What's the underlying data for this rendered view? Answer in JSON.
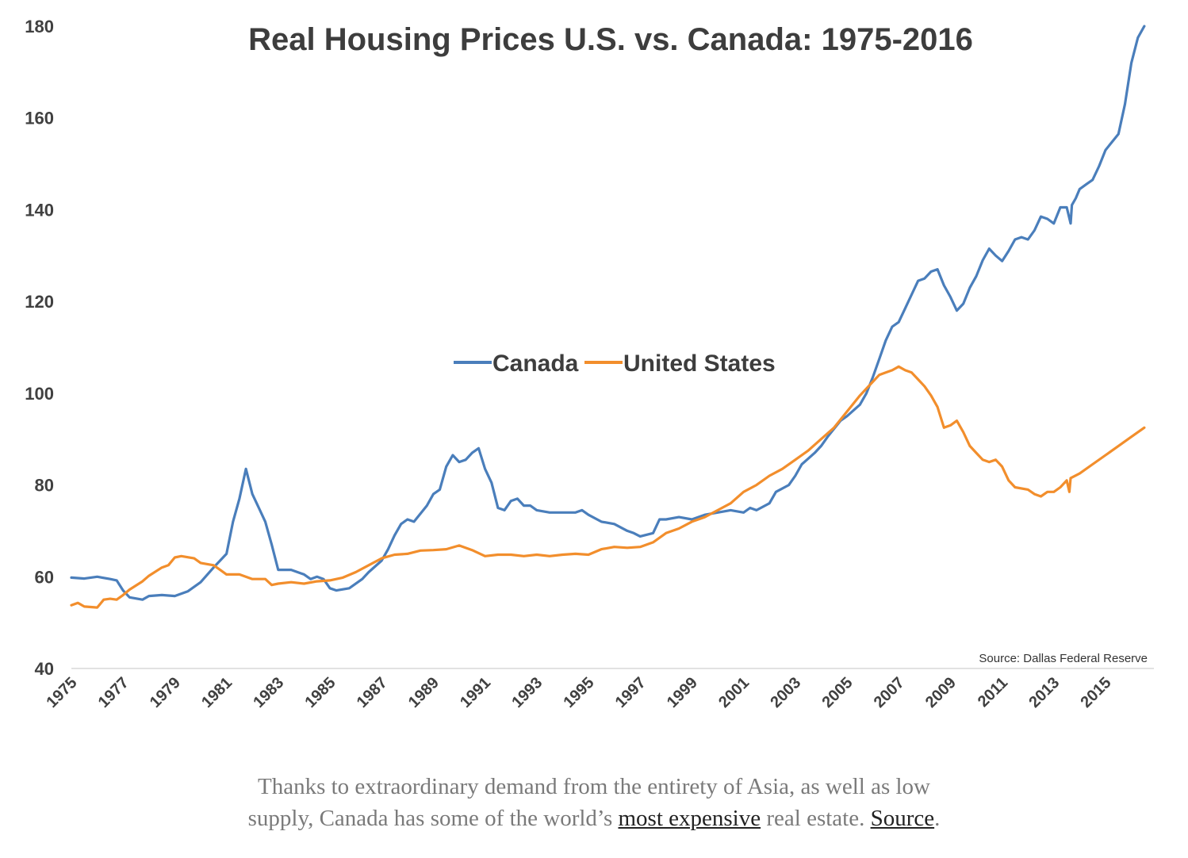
{
  "chart_data": {
    "type": "line",
    "title": "Real Housing Prices U.S. vs. Canada: 1975-2016",
    "xlabel": "",
    "ylabel": "",
    "ylim": [
      40,
      180
    ],
    "yticks": [
      40,
      60,
      80,
      100,
      120,
      140,
      160,
      180
    ],
    "xlim": [
      1975,
      2016.75
    ],
    "xticks": [
      "1975",
      "1977",
      "1979",
      "1981",
      "1983",
      "1985",
      "1987",
      "1989",
      "1991",
      "1993",
      "1995",
      "1997",
      "1999",
      "2001",
      "2003",
      "2005",
      "2007",
      "2009",
      "2011",
      "2013",
      "2015"
    ],
    "grid": false,
    "legend_placement": "center",
    "annotation": "Source: Dallas Federal Reserve",
    "series": [
      {
        "name": "Canada",
        "color": "#4a7ebb",
        "points": [
          [
            1975.0,
            59.8
          ],
          [
            1975.5,
            59.6
          ],
          [
            1976.0,
            60.0
          ],
          [
            1976.5,
            59.5
          ],
          [
            1976.75,
            59.2
          ],
          [
            1977.0,
            57.0
          ],
          [
            1977.25,
            55.5
          ],
          [
            1977.75,
            55.0
          ],
          [
            1978.0,
            55.8
          ],
          [
            1978.5,
            56.0
          ],
          [
            1979.0,
            55.8
          ],
          [
            1979.5,
            56.8
          ],
          [
            1980.0,
            58.8
          ],
          [
            1980.5,
            62.0
          ],
          [
            1980.75,
            63.5
          ],
          [
            1981.0,
            65.0
          ],
          [
            1981.25,
            72.0
          ],
          [
            1981.5,
            77.0
          ],
          [
            1981.75,
            83.5
          ],
          [
            1982.0,
            78.0
          ],
          [
            1982.25,
            75.0
          ],
          [
            1982.5,
            72.0
          ],
          [
            1982.75,
            67.0
          ],
          [
            1983.0,
            61.5
          ],
          [
            1983.5,
            61.5
          ],
          [
            1984.0,
            60.5
          ],
          [
            1984.25,
            59.5
          ],
          [
            1984.5,
            60.0
          ],
          [
            1984.75,
            59.5
          ],
          [
            1985.0,
            57.5
          ],
          [
            1985.25,
            57.0
          ],
          [
            1985.75,
            57.5
          ],
          [
            1986.25,
            59.5
          ],
          [
            1986.5,
            61.0
          ],
          [
            1987.0,
            63.5
          ],
          [
            1987.25,
            66.0
          ],
          [
            1987.5,
            69.0
          ],
          [
            1987.75,
            71.5
          ],
          [
            1988.0,
            72.5
          ],
          [
            1988.25,
            72.0
          ],
          [
            1988.75,
            75.5
          ],
          [
            1989.0,
            78.0
          ],
          [
            1989.25,
            79.0
          ],
          [
            1989.5,
            84.0
          ],
          [
            1989.75,
            86.5
          ],
          [
            1990.0,
            85.0
          ],
          [
            1990.25,
            85.5
          ],
          [
            1990.5,
            87.0
          ],
          [
            1990.75,
            88.0
          ],
          [
            1991.0,
            83.5
          ],
          [
            1991.25,
            80.5
          ],
          [
            1991.5,
            75.0
          ],
          [
            1991.75,
            74.5
          ],
          [
            1992.0,
            76.5
          ],
          [
            1992.25,
            77.0
          ],
          [
            1992.5,
            75.5
          ],
          [
            1992.75,
            75.5
          ],
          [
            1993.0,
            74.5
          ],
          [
            1993.5,
            74.0
          ],
          [
            1994.0,
            74.0
          ],
          [
            1994.5,
            74.0
          ],
          [
            1994.75,
            74.5
          ],
          [
            1995.0,
            73.5
          ],
          [
            1995.5,
            72.0
          ],
          [
            1996.0,
            71.5
          ],
          [
            1996.5,
            70.0
          ],
          [
            1996.75,
            69.5
          ],
          [
            1997.0,
            68.8
          ],
          [
            1997.5,
            69.5
          ],
          [
            1997.75,
            72.5
          ],
          [
            1998.0,
            72.5
          ],
          [
            1998.5,
            73.0
          ],
          [
            1999.0,
            72.5
          ],
          [
            1999.5,
            73.5
          ],
          [
            2000.0,
            74.0
          ],
          [
            2000.5,
            74.5
          ],
          [
            2001.0,
            74.0
          ],
          [
            2001.25,
            75.0
          ],
          [
            2001.5,
            74.5
          ],
          [
            2002.0,
            76.0
          ],
          [
            2002.25,
            78.5
          ],
          [
            2002.75,
            80.0
          ],
          [
            2003.0,
            82.0
          ],
          [
            2003.25,
            84.5
          ],
          [
            2003.75,
            87.0
          ],
          [
            2004.0,
            88.5
          ],
          [
            2004.25,
            90.5
          ],
          [
            2004.75,
            94.0
          ],
          [
            2005.0,
            95.0
          ],
          [
            2005.5,
            97.5
          ],
          [
            2005.75,
            100.0
          ],
          [
            2006.0,
            103.5
          ],
          [
            2006.25,
            107.5
          ],
          [
            2006.5,
            111.5
          ],
          [
            2006.75,
            114.5
          ],
          [
            2007.0,
            115.5
          ],
          [
            2007.25,
            118.5
          ],
          [
            2007.5,
            121.5
          ],
          [
            2007.75,
            124.5
          ],
          [
            2008.0,
            125.0
          ],
          [
            2008.25,
            126.5
          ],
          [
            2008.5,
            127.0
          ],
          [
            2008.75,
            123.5
          ],
          [
            2009.0,
            121.0
          ],
          [
            2009.25,
            118.0
          ],
          [
            2009.5,
            119.5
          ],
          [
            2009.75,
            123.0
          ],
          [
            2010.0,
            125.5
          ],
          [
            2010.25,
            129.0
          ],
          [
            2010.5,
            131.5
          ],
          [
            2010.75,
            130.0
          ],
          [
            2011.0,
            128.8
          ],
          [
            2011.25,
            131.0
          ],
          [
            2011.5,
            133.5
          ],
          [
            2011.75,
            134.0
          ],
          [
            2012.0,
            133.5
          ],
          [
            2012.25,
            135.5
          ],
          [
            2012.5,
            138.5
          ],
          [
            2012.75,
            138.0
          ],
          [
            2013.0,
            137.0
          ],
          [
            2013.25,
            140.5
          ],
          [
            2013.5,
            140.5
          ],
          [
            2013.65,
            137.0
          ],
          [
            2013.7,
            141.0
          ],
          [
            2013.85,
            142.5
          ],
          [
            2014.0,
            144.5
          ],
          [
            2014.25,
            145.5
          ],
          [
            2014.5,
            146.5
          ],
          [
            2014.75,
            149.5
          ],
          [
            2015.0,
            153.0
          ],
          [
            2015.5,
            156.5
          ],
          [
            2015.75,
            163.0
          ],
          [
            2016.0,
            172.0
          ],
          [
            2016.25,
            177.5
          ],
          [
            2016.5,
            180.0
          ]
        ]
      },
      {
        "name": "United States",
        "color": "#f28e2c",
        "points": [
          [
            1975.0,
            53.8
          ],
          [
            1975.25,
            54.3
          ],
          [
            1975.5,
            53.5
          ],
          [
            1976.0,
            53.3
          ],
          [
            1976.25,
            55.0
          ],
          [
            1976.5,
            55.2
          ],
          [
            1976.75,
            55.0
          ],
          [
            1977.0,
            56.0
          ],
          [
            1977.25,
            57.2
          ],
          [
            1977.75,
            59.0
          ],
          [
            1978.0,
            60.2
          ],
          [
            1978.5,
            62.0
          ],
          [
            1978.75,
            62.5
          ],
          [
            1979.0,
            64.2
          ],
          [
            1979.25,
            64.5
          ],
          [
            1979.75,
            64.0
          ],
          [
            1980.0,
            63.0
          ],
          [
            1980.5,
            62.5
          ],
          [
            1980.75,
            61.5
          ],
          [
            1981.0,
            60.5
          ],
          [
            1981.5,
            60.5
          ],
          [
            1982.0,
            59.5
          ],
          [
            1982.5,
            59.5
          ],
          [
            1982.75,
            58.2
          ],
          [
            1983.0,
            58.5
          ],
          [
            1983.5,
            58.8
          ],
          [
            1984.0,
            58.5
          ],
          [
            1984.5,
            59.0
          ],
          [
            1985.0,
            59.2
          ],
          [
            1985.5,
            59.8
          ],
          [
            1986.0,
            61.0
          ],
          [
            1986.5,
            62.5
          ],
          [
            1987.0,
            64.0
          ],
          [
            1987.5,
            64.8
          ],
          [
            1988.0,
            65.0
          ],
          [
            1988.5,
            65.7
          ],
          [
            1989.0,
            65.8
          ],
          [
            1989.5,
            66.0
          ],
          [
            1990.0,
            66.8
          ],
          [
            1990.5,
            65.8
          ],
          [
            1991.0,
            64.5
          ],
          [
            1991.5,
            64.8
          ],
          [
            1992.0,
            64.8
          ],
          [
            1992.5,
            64.5
          ],
          [
            1993.0,
            64.8
          ],
          [
            1993.5,
            64.5
          ],
          [
            1994.0,
            64.8
          ],
          [
            1994.5,
            65.0
          ],
          [
            1995.0,
            64.8
          ],
          [
            1995.5,
            66.0
          ],
          [
            1996.0,
            66.5
          ],
          [
            1996.5,
            66.3
          ],
          [
            1997.0,
            66.5
          ],
          [
            1997.5,
            67.5
          ],
          [
            1998.0,
            69.5
          ],
          [
            1998.5,
            70.5
          ],
          [
            1999.0,
            72.0
          ],
          [
            1999.5,
            73.0
          ],
          [
            2000.0,
            74.5
          ],
          [
            2000.5,
            76.0
          ],
          [
            2001.0,
            78.5
          ],
          [
            2001.5,
            80.0
          ],
          [
            2002.0,
            82.0
          ],
          [
            2002.5,
            83.5
          ],
          [
            2003.0,
            85.5
          ],
          [
            2003.5,
            87.5
          ],
          [
            2004.0,
            90.0
          ],
          [
            2004.5,
            92.5
          ],
          [
            2005.0,
            96.0
          ],
          [
            2005.5,
            99.5
          ],
          [
            2006.0,
            102.5
          ],
          [
            2006.25,
            104.0
          ],
          [
            2006.5,
            104.5
          ],
          [
            2006.75,
            105.0
          ],
          [
            2007.0,
            105.8
          ],
          [
            2007.25,
            105.0
          ],
          [
            2007.5,
            104.5
          ],
          [
            2007.75,
            103.0
          ],
          [
            2008.0,
            101.5
          ],
          [
            2008.25,
            99.5
          ],
          [
            2008.5,
            97.0
          ],
          [
            2008.75,
            92.5
          ],
          [
            2009.0,
            93.0
          ],
          [
            2009.25,
            94.0
          ],
          [
            2009.5,
            91.5
          ],
          [
            2009.75,
            88.5
          ],
          [
            2010.0,
            87.0
          ],
          [
            2010.25,
            85.5
          ],
          [
            2010.5,
            85.0
          ],
          [
            2010.75,
            85.5
          ],
          [
            2011.0,
            84.0
          ],
          [
            2011.25,
            81.0
          ],
          [
            2011.5,
            79.5
          ],
          [
            2012.0,
            79.0
          ],
          [
            2012.25,
            78.0
          ],
          [
            2012.5,
            77.5
          ],
          [
            2012.75,
            78.5
          ],
          [
            2013.0,
            78.5
          ],
          [
            2013.25,
            79.5
          ],
          [
            2013.5,
            81.0
          ],
          [
            2013.6,
            78.5
          ],
          [
            2013.65,
            81.5
          ],
          [
            2014.0,
            82.5
          ],
          [
            2014.5,
            84.5
          ],
          [
            2015.0,
            86.5
          ],
          [
            2015.5,
            88.5
          ],
          [
            2016.0,
            90.5
          ],
          [
            2016.5,
            92.5
          ]
        ]
      }
    ]
  },
  "caption": {
    "line1": "Thanks to extraordinary demand from the entirety of Asia, as well as low",
    "line2_start": "supply, Canada has some of the world’s ",
    "link1": "most expensive",
    "line2_mid": " real estate. ",
    "link2": "Source",
    "line2_end": "."
  }
}
